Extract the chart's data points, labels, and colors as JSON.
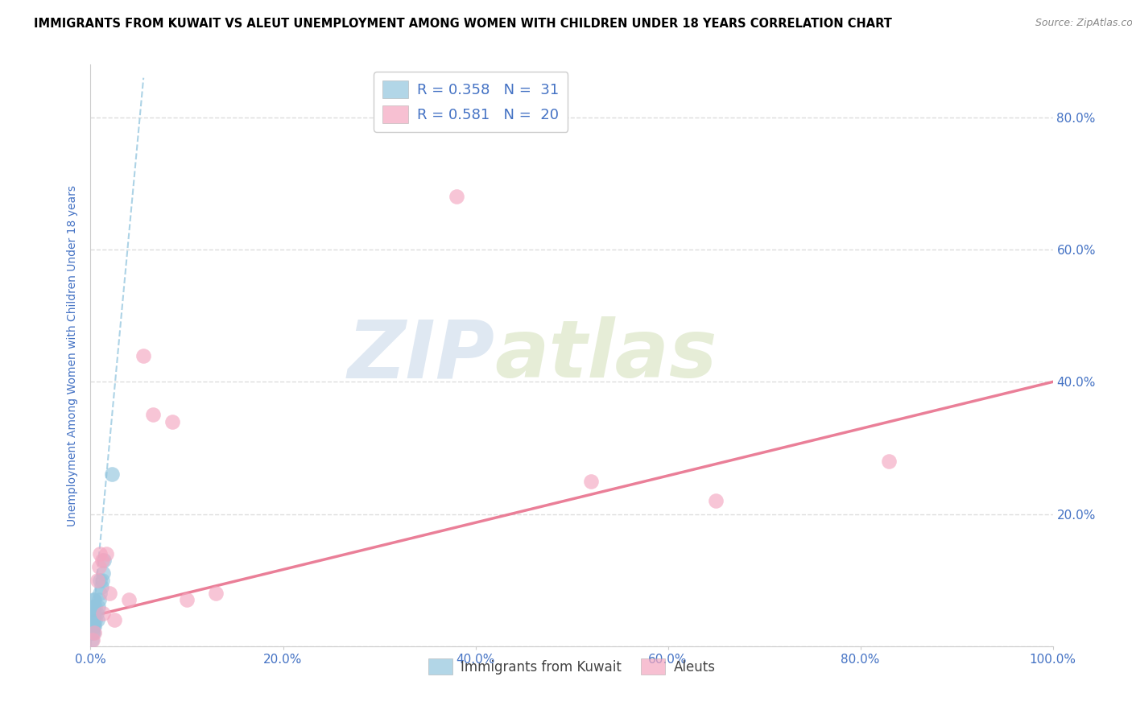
{
  "title": "IMMIGRANTS FROM KUWAIT VS ALEUT UNEMPLOYMENT AMONG WOMEN WITH CHILDREN UNDER 18 YEARS CORRELATION CHART",
  "source": "Source: ZipAtlas.com",
  "ylabel": "Unemployment Among Women with Children Under 18 years",
  "xlim": [
    0,
    1.0
  ],
  "ylim": [
    0,
    0.88
  ],
  "xticks": [
    0.0,
    0.2,
    0.4,
    0.6,
    0.8,
    1.0
  ],
  "xtick_labels": [
    "0.0%",
    "20.0%",
    "40.0%",
    "60.0%",
    "80.0%",
    "100.0%"
  ],
  "yticks": [
    0.0,
    0.2,
    0.4,
    0.6,
    0.8
  ],
  "ytick_labels_right": [
    "",
    "20.0%",
    "40.0%",
    "60.0%",
    "80.0%"
  ],
  "legend1_label": "R = 0.358   N =  31",
  "legend2_label": "R = 0.581   N =  20",
  "legend_labels": [
    "Immigrants from Kuwait",
    "Aleuts"
  ],
  "blue_color": "#92c5de",
  "pink_color": "#f4a6c0",
  "blue_line_color": "#92c5de",
  "pink_line_color": "#e8718d",
  "watermark_zip": "ZIP",
  "watermark_atlas": "atlas",
  "blue_points_x": [
    0.001,
    0.001,
    0.001,
    0.001,
    0.002,
    0.002,
    0.002,
    0.002,
    0.002,
    0.003,
    0.003,
    0.003,
    0.003,
    0.003,
    0.003,
    0.004,
    0.004,
    0.004,
    0.005,
    0.005,
    0.006,
    0.007,
    0.008,
    0.009,
    0.01,
    0.01,
    0.011,
    0.012,
    0.013,
    0.014,
    0.022
  ],
  "blue_points_y": [
    0.01,
    0.02,
    0.03,
    0.04,
    0.02,
    0.03,
    0.04,
    0.05,
    0.06,
    0.02,
    0.03,
    0.04,
    0.05,
    0.06,
    0.07,
    0.03,
    0.05,
    0.07,
    0.04,
    0.06,
    0.05,
    0.04,
    0.06,
    0.07,
    0.08,
    0.1,
    0.09,
    0.1,
    0.11,
    0.13,
    0.26
  ],
  "pink_points_x": [
    0.002,
    0.004,
    0.007,
    0.009,
    0.01,
    0.012,
    0.013,
    0.016,
    0.02,
    0.025,
    0.04,
    0.055,
    0.065,
    0.085,
    0.1,
    0.13,
    0.38,
    0.52,
    0.65,
    0.83
  ],
  "pink_points_y": [
    0.01,
    0.02,
    0.1,
    0.12,
    0.14,
    0.13,
    0.05,
    0.14,
    0.08,
    0.04,
    0.07,
    0.44,
    0.35,
    0.34,
    0.07,
    0.08,
    0.68,
    0.25,
    0.22,
    0.28
  ],
  "blue_trend_x": [
    0.0,
    0.055
  ],
  "blue_trend_y_start": 0.0,
  "blue_trend_y_end": 0.86,
  "pink_trend_x_start": 0.0,
  "pink_trend_x_end": 1.0,
  "pink_trend_y_start": 0.045,
  "pink_trend_y_end": 0.4,
  "background_color": "#ffffff",
  "grid_color": "#dddddd",
  "title_color": "#000000",
  "axis_label_color": "#4472c4",
  "tick_color": "#4472c4",
  "legend_text_color": "#4472c4"
}
